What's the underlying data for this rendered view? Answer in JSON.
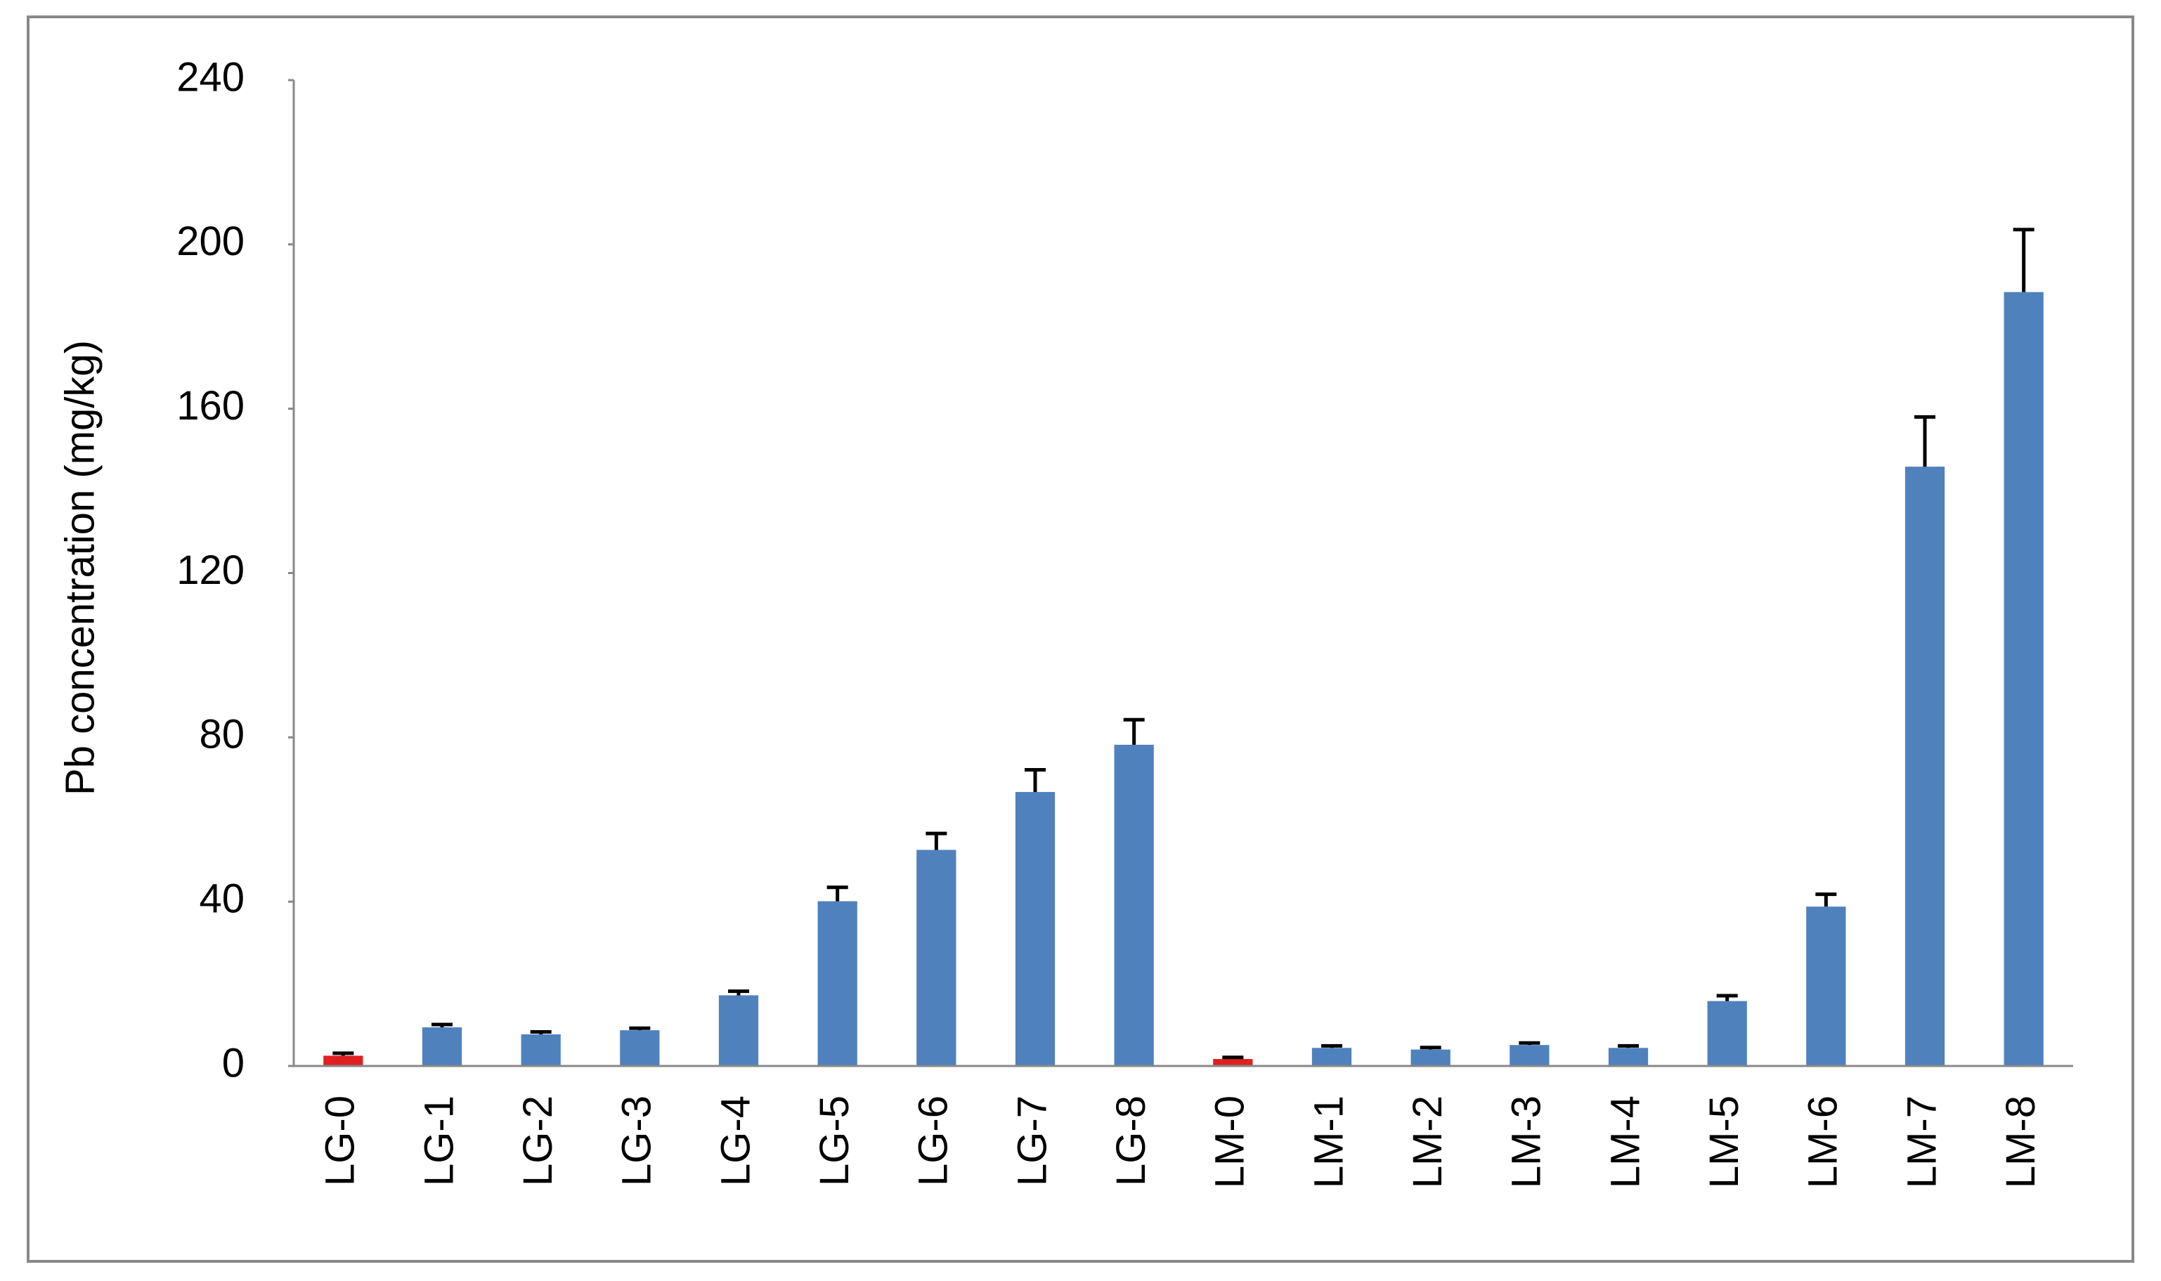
{
  "chart_data": {
    "type": "bar",
    "y_axis_label": "Pb concentration (mg/kg)",
    "categories": [
      "LG-0",
      "LG-1",
      "LG-2",
      "LG-3",
      "LG-4",
      "LG-5",
      "LG-6",
      "LG-7",
      "LG-8",
      "LM-0",
      "LM-1",
      "LM-2",
      "LM-3",
      "LM-4",
      "LM-5",
      "LM-6",
      "LM-7",
      "LM-8"
    ],
    "series": [
      {
        "values": [
          2.5,
          9.4,
          7.7,
          8.7,
          17.2,
          40.1,
          52.6,
          66.7,
          78.2,
          1.7,
          4.4,
          4.0,
          5.1,
          4.4,
          15.8,
          38.8,
          145.9,
          188.4
        ],
        "errors": [
          0.6,
          0.7,
          0.6,
          0.5,
          1.0,
          3.4,
          4.0,
          5.4,
          6.1,
          0.4,
          0.5,
          0.5,
          0.5,
          0.5,
          1.3,
          3.0,
          12.1,
          15.2
        ],
        "colors": [
          "#e02020",
          "#4f81bd",
          "#4f81bd",
          "#4f81bd",
          "#4f81bd",
          "#4f81bd",
          "#4f81bd",
          "#4f81bd",
          "#4f81bd",
          "#e02020",
          "#4f81bd",
          "#4f81bd",
          "#4f81bd",
          "#4f81bd",
          "#4f81bd",
          "#4f81bd",
          "#4f81bd",
          "#4f81bd"
        ]
      }
    ],
    "ylim": [
      0,
      240
    ],
    "yticks": [
      0,
      40,
      80,
      120,
      160,
      200,
      240
    ],
    "grid": false
  }
}
